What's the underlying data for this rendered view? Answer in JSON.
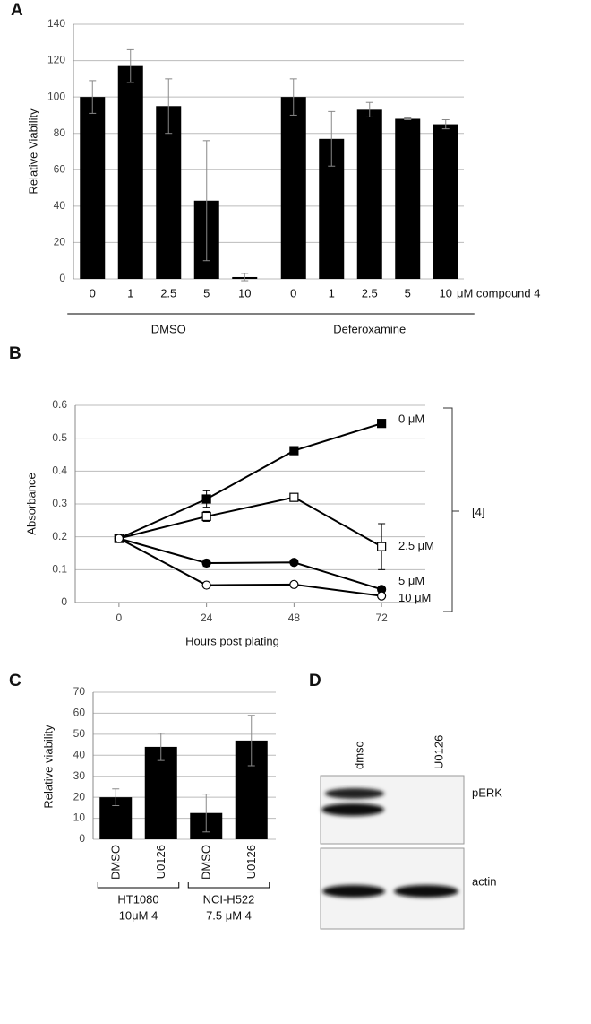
{
  "chart_data": [
    {
      "type": "bar",
      "panel": "A",
      "ylabel": "Relative Viability",
      "categories": [
        "0",
        "1",
        "2.5",
        "5",
        "10",
        "0",
        "1",
        "2.5",
        "5",
        "10"
      ],
      "values": [
        100,
        117,
        95,
        43,
        1,
        100,
        77,
        93,
        88,
        85
      ],
      "errors": [
        9,
        9,
        15,
        33,
        2,
        10,
        15,
        4,
        0.5,
        2.5
      ],
      "color": "#000000",
      "ylim": [
        0,
        140
      ],
      "yticks": [
        0,
        20,
        40,
        60,
        80,
        100,
        120,
        140
      ],
      "grid": true,
      "x_unit_label": "μM compound 4",
      "groups": [
        "DMSO",
        "Deferoxamine"
      ]
    },
    {
      "type": "line",
      "panel": "B",
      "xlabel": "Hours post plating",
      "ylabel": "Absorbance",
      "x": [
        0,
        24,
        48,
        72
      ],
      "xlim": [
        -12,
        84
      ],
      "xticks": [
        0,
        24,
        48,
        72
      ],
      "ylim": [
        0,
        0.6
      ],
      "yticks": [
        0,
        0.1,
        0.2,
        0.3,
        0.4,
        0.5,
        0.6
      ],
      "grid": true,
      "series": [
        {
          "name": "0 μM",
          "color": "#000000",
          "marker": "square",
          "fill": "#000000",
          "values": [
            0.195,
            0.315,
            0.462,
            0.545
          ],
          "errors": [
            0.005,
            0.025,
            0.005,
            0.01
          ]
        },
        {
          "name": "2.5 μM",
          "color": "#000000",
          "marker": "square",
          "fill": "#ffffff",
          "values": [
            0.195,
            0.262,
            0.32,
            0.17
          ],
          "errors": [
            0.005,
            0.015,
            0.01,
            0.07
          ]
        },
        {
          "name": "5 μM",
          "color": "#000000",
          "marker": "circle",
          "fill": "#000000",
          "values": [
            0.195,
            0.12,
            0.122,
            0.04
          ],
          "errors": [
            0.005,
            0.01,
            0.008,
            0.005
          ]
        },
        {
          "name": "10 μM",
          "color": "#000000",
          "marker": "circle",
          "fill": "#ffffff",
          "values": [
            0.195,
            0.053,
            0.055,
            0.02
          ],
          "errors": [
            0.005,
            0.004,
            0.004,
            0.003
          ]
        }
      ],
      "bracket_label": "[4]"
    },
    {
      "type": "bar",
      "panel": "C",
      "ylabel": "Relative viability",
      "categories": [
        "DMSO",
        "U0126",
        "DMSO",
        "U0126"
      ],
      "values": [
        20,
        44,
        12.5,
        47
      ],
      "errors": [
        4,
        6.5,
        9,
        12
      ],
      "color": "#000000",
      "ylim": [
        0,
        70
      ],
      "yticks": [
        0,
        10,
        20,
        30,
        40,
        50,
        60,
        70
      ],
      "grid": true,
      "groups": [
        [
          "HT1080",
          "10μM 4"
        ],
        [
          "NCI-H522",
          "7.5 μM 4"
        ]
      ]
    }
  ],
  "blot": {
    "panel": "D",
    "lanes": [
      "dmso",
      "U0126"
    ],
    "bands": [
      "pERK",
      "actin"
    ]
  }
}
